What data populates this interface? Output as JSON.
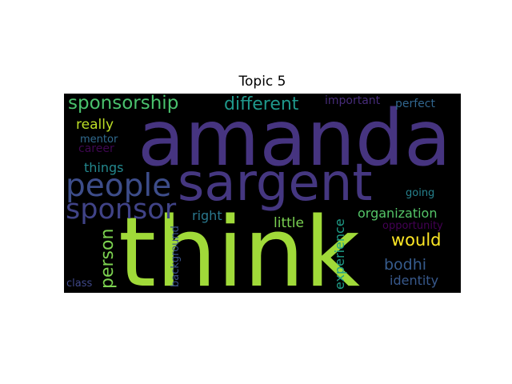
{
  "figure": {
    "title": "Topic 5"
  },
  "wordcloud": {
    "words": [
      {
        "text": "amanda",
        "color": "#463480"
      },
      {
        "text": "think",
        "color": "#a0da39"
      },
      {
        "text": "sargent",
        "color": "#453781"
      },
      {
        "text": "people",
        "color": "#3d4d8a"
      },
      {
        "text": "sponsor",
        "color": "#404387"
      },
      {
        "text": "sponsorship",
        "color": "#4ac16d"
      },
      {
        "text": "different",
        "color": "#1f988b"
      },
      {
        "text": "important",
        "color": "#472c7a"
      },
      {
        "text": "perfect",
        "color": "#31668e"
      },
      {
        "text": "really",
        "color": "#bddf26"
      },
      {
        "text": "mentor",
        "color": "#306a8e"
      },
      {
        "text": "career",
        "color": "#3e0751"
      },
      {
        "text": "things",
        "color": "#23888e"
      },
      {
        "text": "going",
        "color": "#26828e"
      },
      {
        "text": "right",
        "color": "#2a788e"
      },
      {
        "text": "little",
        "color": "#7ad151"
      },
      {
        "text": "organization",
        "color": "#54c568"
      },
      {
        "text": "opportunity",
        "color": "#440154"
      },
      {
        "text": "would",
        "color": "#fde725"
      },
      {
        "text": "person",
        "color": "#7cd250"
      },
      {
        "text": "background",
        "color": "#3b528b"
      },
      {
        "text": "experience",
        "color": "#1f9e89"
      },
      {
        "text": "bodhi",
        "color": "#365c8d"
      },
      {
        "text": "identity",
        "color": "#38598c"
      },
      {
        "text": "class",
        "color": "#3f4889"
      }
    ]
  }
}
